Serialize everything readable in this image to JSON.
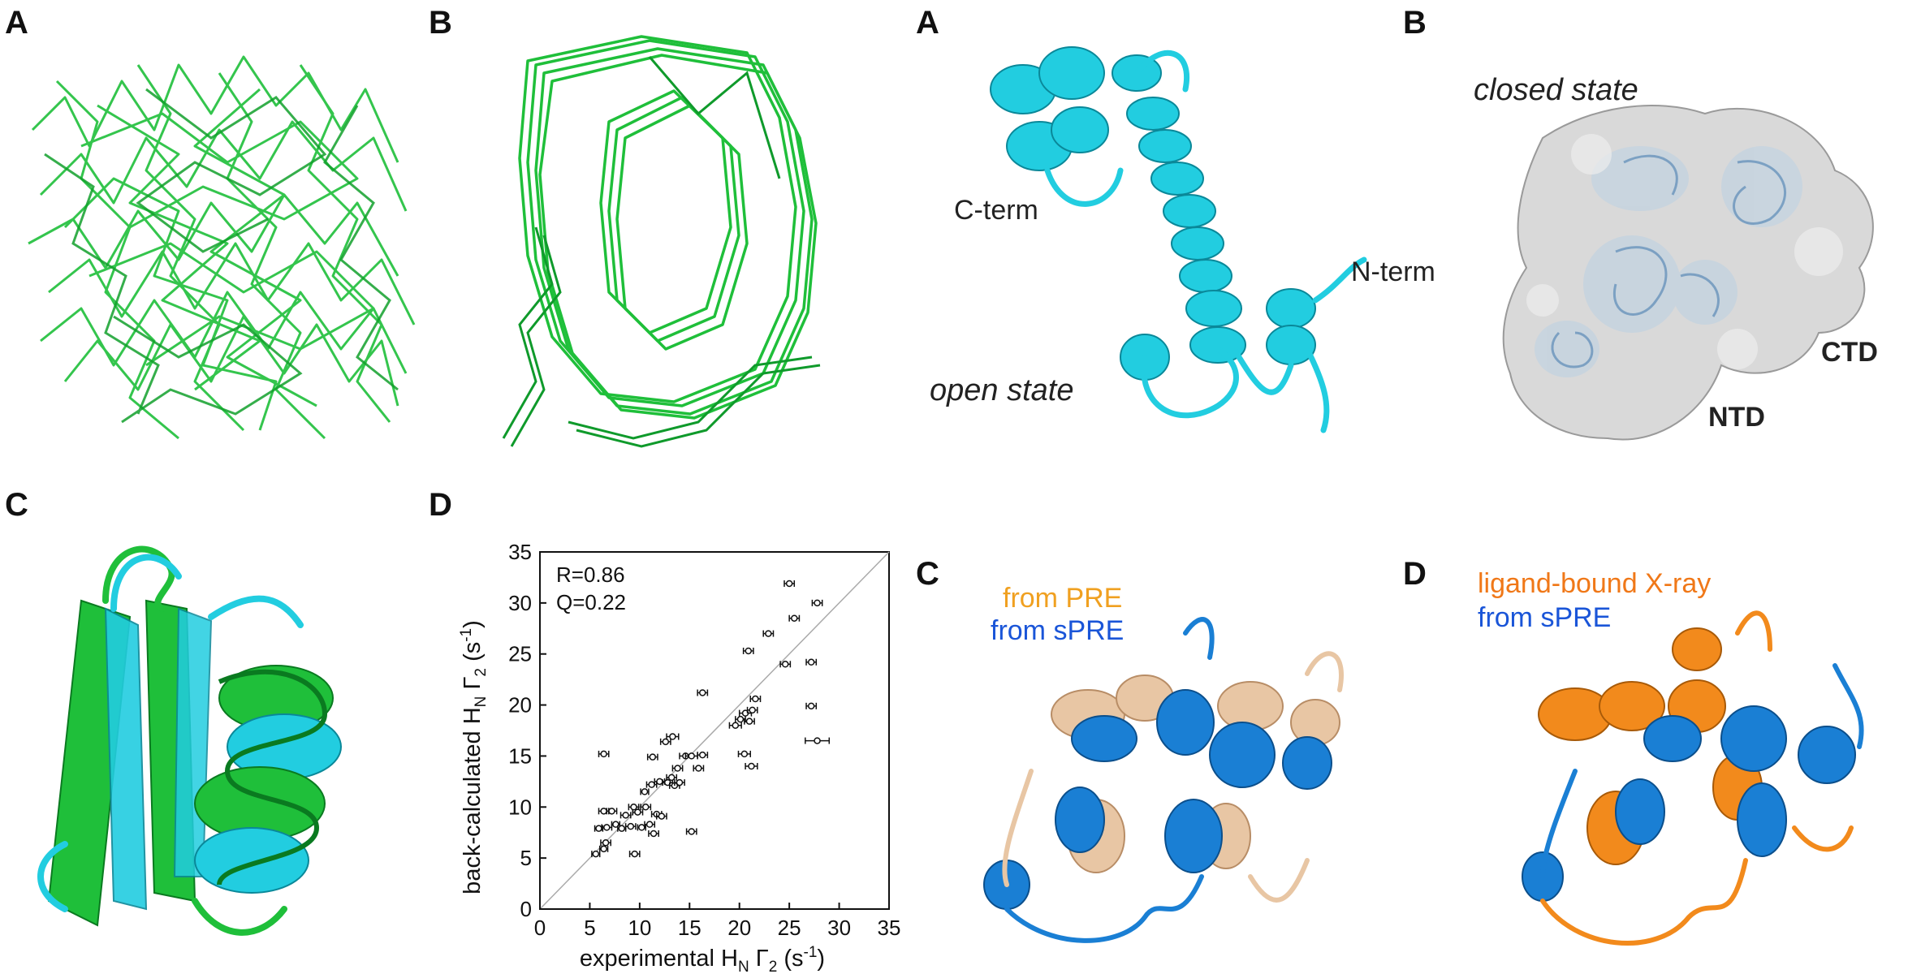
{
  "panel_labels": {
    "left_a": "A",
    "left_b": "B",
    "left_c": "C",
    "left_d": "D",
    "right_a": "A",
    "right_b": "B",
    "right_c": "C",
    "right_d": "D"
  },
  "annotations": {
    "c_term": "C-term",
    "n_term": "N-term",
    "open_state": "open state",
    "closed_state": "closed state",
    "ctd": "CTD",
    "ntd": "NTD",
    "from_pre": "from PRE",
    "from_spre_c": "from sPRE",
    "ligand_bound": "ligand-bound X-ray",
    "from_spre_d": "from sPRE"
  },
  "colors": {
    "ensemble_green": "#1fbf3a",
    "cyan": "#22cde0",
    "wheat": "#e8c6a4",
    "blue": "#1a7fd4",
    "orange": "#f28a1c",
    "surface_grey": "#d6d6d6",
    "pre_text": "#f0a020",
    "spre_text": "#1a55d8",
    "ligand_text": "#f07818"
  },
  "chart_data": {
    "type": "scatter",
    "xlabel": "experimental Hₙ Γ₂ (s⁻¹)",
    "ylabel": "back-calculated Hₙ Γ₂ (s⁻¹)",
    "xlabel_main": "experimental H",
    "xlabel_sub": "N",
    "xlabel_gamma": " Γ",
    "xlabel_gsub": "2",
    "xlabel_unit": " (s",
    "xlabel_sup": "-1",
    "xlabel_close": ")",
    "ylabel_main": "back-calculated H",
    "ylabel_sub": "N",
    "ylabel_gamma": " Γ",
    "ylabel_gsub": "2",
    "ylabel_unit": " (s",
    "ylabel_sup": "-1",
    "ylabel_close": ")",
    "xlim": [
      0,
      35
    ],
    "ylim": [
      0,
      35
    ],
    "xticks": [
      "0",
      "5",
      "10",
      "15",
      "20",
      "25",
      "30",
      "35"
    ],
    "yticks": [
      "0",
      "5",
      "10",
      "15",
      "20",
      "25",
      "30",
      "35"
    ],
    "diagonal": true,
    "stats": [
      "R=0.86",
      "Q=0.22"
    ],
    "points": [
      {
        "x": 5.6,
        "y": 5.4,
        "e": 0.4
      },
      {
        "x": 6.4,
        "y": 5.9,
        "e": 0.4
      },
      {
        "x": 6.6,
        "y": 6.5,
        "e": 0.5
      },
      {
        "x": 5.9,
        "y": 7.9,
        "e": 0.4
      },
      {
        "x": 6.7,
        "y": 8.0,
        "e": 0.5
      },
      {
        "x": 6.4,
        "y": 9.6,
        "e": 0.5
      },
      {
        "x": 7.2,
        "y": 9.6,
        "e": 0.5
      },
      {
        "x": 7.6,
        "y": 8.3,
        "e": 0.4
      },
      {
        "x": 8.2,
        "y": 7.9,
        "e": 0.4
      },
      {
        "x": 8.6,
        "y": 9.2,
        "e": 0.5
      },
      {
        "x": 9.1,
        "y": 8.1,
        "e": 0.5
      },
      {
        "x": 9.4,
        "y": 10.0,
        "e": 0.5
      },
      {
        "x": 9.8,
        "y": 9.5,
        "e": 0.5
      },
      {
        "x": 10.2,
        "y": 8.0,
        "e": 0.4
      },
      {
        "x": 10.6,
        "y": 10.0,
        "e": 0.5
      },
      {
        "x": 11.0,
        "y": 8.3,
        "e": 0.5
      },
      {
        "x": 11.4,
        "y": 7.4,
        "e": 0.5
      },
      {
        "x": 11.7,
        "y": 9.3,
        "e": 0.5
      },
      {
        "x": 12.2,
        "y": 9.1,
        "e": 0.5
      },
      {
        "x": 9.5,
        "y": 5.4,
        "e": 0.5
      },
      {
        "x": 10.5,
        "y": 11.5,
        "e": 0.4
      },
      {
        "x": 11.2,
        "y": 12.2,
        "e": 0.5
      },
      {
        "x": 12.0,
        "y": 12.5,
        "e": 0.5
      },
      {
        "x": 12.8,
        "y": 12.4,
        "e": 0.5
      },
      {
        "x": 13.5,
        "y": 12.1,
        "e": 0.5
      },
      {
        "x": 13.2,
        "y": 12.9,
        "e": 0.5
      },
      {
        "x": 13.8,
        "y": 13.8,
        "e": 0.5
      },
      {
        "x": 14.0,
        "y": 12.4,
        "e": 0.5
      },
      {
        "x": 14.6,
        "y": 15.0,
        "e": 0.6
      },
      {
        "x": 15.2,
        "y": 15.0,
        "e": 0.6
      },
      {
        "x": 15.9,
        "y": 13.8,
        "e": 0.5
      },
      {
        "x": 16.3,
        "y": 15.1,
        "e": 0.5
      },
      {
        "x": 12.6,
        "y": 16.4,
        "e": 0.5
      },
      {
        "x": 13.3,
        "y": 16.9,
        "e": 0.6
      },
      {
        "x": 11.3,
        "y": 14.9,
        "e": 0.5
      },
      {
        "x": 15.2,
        "y": 7.6,
        "e": 0.5
      },
      {
        "x": 6.4,
        "y": 15.2,
        "e": 0.5
      },
      {
        "x": 16.3,
        "y": 21.2,
        "e": 0.5
      },
      {
        "x": 19.6,
        "y": 18.0,
        "e": 0.6
      },
      {
        "x": 20.1,
        "y": 18.6,
        "e": 0.5
      },
      {
        "x": 20.6,
        "y": 19.2,
        "e": 0.6
      },
      {
        "x": 21.0,
        "y": 18.4,
        "e": 0.5
      },
      {
        "x": 21.3,
        "y": 19.5,
        "e": 0.5
      },
      {
        "x": 21.6,
        "y": 20.6,
        "e": 0.5
      },
      {
        "x": 20.5,
        "y": 15.2,
        "e": 0.6
      },
      {
        "x": 21.2,
        "y": 14.0,
        "e": 0.6
      },
      {
        "x": 20.9,
        "y": 25.3,
        "e": 0.5
      },
      {
        "x": 22.9,
        "y": 27.0,
        "e": 0.5
      },
      {
        "x": 24.6,
        "y": 24.0,
        "e": 0.5
      },
      {
        "x": 25.0,
        "y": 31.9,
        "e": 0.5
      },
      {
        "x": 25.5,
        "y": 28.5,
        "e": 0.5
      },
      {
        "x": 27.8,
        "y": 30.0,
        "e": 0.5
      },
      {
        "x": 27.2,
        "y": 24.2,
        "e": 0.5
      },
      {
        "x": 27.2,
        "y": 19.9,
        "e": 0.5
      },
      {
        "x": 27.8,
        "y": 16.5,
        "e": 1.2
      }
    ]
  }
}
